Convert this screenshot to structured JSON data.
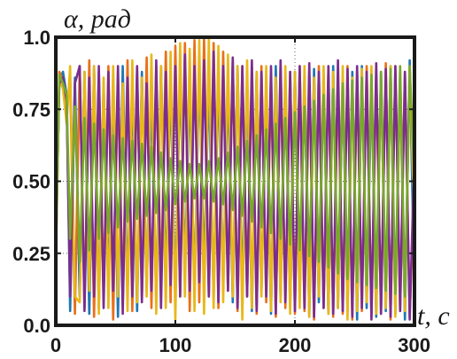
{
  "chart_data": {
    "type": "line",
    "title": "",
    "ylabel": "α, рад",
    "xlabel": "t, c",
    "xlim": [
      0,
      300
    ],
    "ylim": [
      0,
      1.0
    ],
    "xticks": [
      0,
      100,
      200,
      300
    ],
    "xtick_labels": [
      "0",
      "100",
      "200",
      "300"
    ],
    "yticks": [
      0.0,
      0.25,
      0.5,
      0.75,
      1.0
    ],
    "ytick_labels": [
      "0.0",
      "0.25",
      "0.50",
      "0.75",
      "1.0"
    ],
    "grid": "dotted",
    "legend": "none",
    "series": [
      {
        "color": "#1f77b4",
        "x": [
          0,
          3,
          6,
          9,
          12,
          16,
          20,
          24,
          28,
          32,
          36,
          40,
          44,
          48,
          52,
          56,
          60,
          64,
          68,
          72,
          76,
          80,
          84,
          88,
          92,
          96,
          100,
          104,
          108,
          112,
          116,
          120,
          124,
          128,
          132,
          136,
          140,
          144,
          148,
          152,
          156,
          160,
          164,
          168,
          172,
          176,
          180,
          184,
          188,
          192,
          196,
          200,
          204,
          208,
          212,
          216,
          220,
          224,
          228,
          232,
          236,
          240,
          244,
          248,
          252,
          256,
          260,
          264,
          268,
          272,
          276,
          280,
          284,
          288,
          292,
          296,
          300
        ],
        "y": [
          0.3,
          0.85,
          0.88,
          0.8,
          0.05,
          0.86,
          0.1,
          0.88,
          0.04,
          0.9,
          0.06,
          0.84,
          0.12,
          0.86,
          0.03,
          0.9,
          0.1,
          0.85,
          0.05,
          0.88,
          0.12,
          0.82,
          0.08,
          0.9,
          0.15,
          0.85,
          0.1,
          0.88,
          0.2,
          0.84,
          0.12,
          0.9,
          0.18,
          0.86,
          0.1,
          0.88,
          0.14,
          0.85,
          0.08,
          0.9,
          0.1,
          0.86,
          0.05,
          0.88,
          0.12,
          0.84,
          0.04,
          0.9,
          0.1,
          0.85,
          0.06,
          0.88,
          0.1,
          0.86,
          0.03,
          0.89,
          0.08,
          0.87,
          0.04,
          0.9,
          0.06,
          0.86,
          0.05,
          0.88,
          0.02,
          0.9,
          0.06,
          0.85,
          0.03,
          0.88,
          0.05,
          0.9,
          0.04,
          0.86,
          0.02,
          0.92,
          0.1
        ]
      },
      {
        "color": "#e8701a",
        "x": [
          0,
          3,
          6,
          9,
          12,
          16,
          20,
          24,
          28,
          32,
          36,
          40,
          44,
          48,
          52,
          56,
          60,
          64,
          68,
          72,
          76,
          80,
          84,
          88,
          92,
          96,
          100,
          104,
          108,
          112,
          116,
          120,
          124,
          128,
          132,
          136,
          140,
          144,
          148,
          152,
          156,
          160,
          164,
          168,
          172,
          176,
          180,
          184,
          188,
          192,
          196,
          200,
          204,
          208,
          212,
          216,
          220,
          224,
          228,
          232,
          236,
          240,
          244,
          248,
          252,
          256,
          260,
          264,
          268,
          272,
          276,
          280,
          284,
          288,
          292,
          296,
          300
        ],
        "y": [
          0.2,
          0.88,
          0.85,
          0.75,
          0.85,
          0.04,
          0.9,
          0.06,
          0.92,
          0.03,
          0.88,
          0.1,
          0.9,
          0.02,
          0.86,
          0.08,
          0.92,
          0.05,
          0.88,
          0.1,
          0.93,
          0.06,
          0.9,
          0.12,
          0.95,
          0.08,
          0.97,
          0.1,
          0.98,
          0.05,
          0.99,
          0.08,
          1.0,
          0.1,
          0.98,
          0.06,
          0.95,
          0.12,
          0.92,
          0.05,
          0.9,
          0.1,
          0.88,
          0.04,
          0.9,
          0.08,
          0.86,
          0.03,
          0.9,
          0.06,
          0.88,
          0.04,
          0.9,
          0.05,
          0.87,
          0.02,
          0.9,
          0.06,
          0.88,
          0.03,
          0.86,
          0.04,
          0.9,
          0.02,
          0.88,
          0.05,
          0.9,
          0.03,
          0.87,
          0.04,
          0.91,
          0.02,
          0.9,
          0.05,
          0.88,
          0.03,
          0.5
        ]
      },
      {
        "color": "#e8b81a",
        "x": [
          0,
          3,
          6,
          9,
          12,
          16,
          20,
          24,
          28,
          32,
          36,
          40,
          44,
          48,
          52,
          56,
          60,
          64,
          68,
          72,
          76,
          80,
          84,
          88,
          92,
          96,
          100,
          104,
          108,
          112,
          116,
          120,
          124,
          128,
          132,
          136,
          140,
          144,
          148,
          152,
          156,
          160,
          164,
          168,
          172,
          176,
          180,
          184,
          188,
          192,
          196,
          200,
          204,
          208,
          212,
          216,
          220,
          224,
          228,
          232,
          236,
          240,
          244,
          248,
          252,
          256,
          260,
          264,
          268,
          272,
          276,
          280,
          284,
          288,
          292,
          296,
          300
        ],
        "y": [
          0.25,
          0.86,
          0.82,
          0.7,
          0.9,
          0.1,
          0.08,
          0.88,
          0.12,
          0.9,
          0.04,
          0.86,
          0.06,
          0.9,
          0.1,
          0.84,
          0.05,
          0.92,
          0.08,
          0.86,
          0.1,
          0.94,
          0.04,
          0.9,
          0.06,
          0.95,
          0.02,
          0.98,
          0.1,
          0.96,
          0.05,
          0.99,
          0.04,
          1.0,
          0.06,
          0.97,
          0.08,
          0.94,
          0.1,
          0.9,
          0.02,
          0.92,
          0.06,
          0.88,
          0.1,
          0.9,
          0.05,
          0.86,
          0.08,
          0.9,
          0.04,
          0.88,
          0.06,
          0.9,
          0.03,
          0.86,
          0.1,
          0.9,
          0.04,
          0.88,
          0.06,
          0.9,
          0.02,
          0.86,
          0.05,
          0.89,
          0.08,
          0.9,
          0.04,
          0.87,
          0.06,
          0.9,
          0.03,
          0.88,
          0.05,
          0.9,
          0.35
        ]
      },
      {
        "color": "#7b2d8e",
        "x": [
          0,
          3,
          6,
          9,
          12,
          16,
          20,
          24,
          28,
          32,
          36,
          40,
          44,
          48,
          52,
          56,
          60,
          64,
          68,
          72,
          76,
          80,
          84,
          88,
          92,
          96,
          100,
          104,
          108,
          112,
          116,
          120,
          124,
          128,
          132,
          136,
          140,
          144,
          148,
          152,
          156,
          160,
          164,
          168,
          172,
          176,
          180,
          184,
          188,
          192,
          196,
          200,
          204,
          208,
          212,
          216,
          220,
          224,
          228,
          232,
          236,
          240,
          244,
          248,
          252,
          256,
          260,
          264,
          268,
          272,
          276,
          280,
          284,
          288,
          292,
          296,
          300
        ],
        "y": [
          0.28,
          0.84,
          0.86,
          0.78,
          0.1,
          0.84,
          0.9,
          0.05,
          0.86,
          0.1,
          0.9,
          0.06,
          0.88,
          0.12,
          0.9,
          0.04,
          0.86,
          0.1,
          0.9,
          0.08,
          0.84,
          0.12,
          0.92,
          0.06,
          0.88,
          0.14,
          0.9,
          0.1,
          0.94,
          0.12,
          0.9,
          0.15,
          0.92,
          0.1,
          0.95,
          0.08,
          0.9,
          0.12,
          0.93,
          0.06,
          0.9,
          0.1,
          0.92,
          0.05,
          0.88,
          0.1,
          0.9,
          0.04,
          0.92,
          0.08,
          0.88,
          0.05,
          0.9,
          0.06,
          0.91,
          0.03,
          0.88,
          0.06,
          0.9,
          0.04,
          0.92,
          0.05,
          0.89,
          0.03,
          0.9,
          0.06,
          0.88,
          0.02,
          0.91,
          0.04,
          0.89,
          0.03,
          0.9,
          0.05,
          0.88,
          0.02,
          0.6
        ]
      },
      {
        "color": "#79a82e",
        "x": [
          0,
          3,
          6,
          9,
          12,
          16,
          20,
          24,
          28,
          32,
          36,
          40,
          44,
          48,
          52,
          56,
          60,
          64,
          68,
          72,
          76,
          80,
          84,
          88,
          92,
          96,
          100,
          104,
          108,
          112,
          116,
          120,
          124,
          128,
          132,
          136,
          140,
          144,
          148,
          152,
          156,
          160,
          164,
          168,
          172,
          176,
          180,
          184,
          188,
          192,
          196,
          200,
          204,
          208,
          212,
          216,
          220,
          224,
          228,
          232,
          236,
          240,
          244,
          248,
          252,
          256,
          260,
          264,
          268,
          272,
          276,
          280,
          284,
          288,
          292,
          296,
          300
        ],
        "y": [
          0.22,
          0.87,
          0.84,
          0.8,
          0.3,
          0.76,
          0.22,
          0.72,
          0.26,
          0.7,
          0.3,
          0.68,
          0.32,
          0.66,
          0.34,
          0.65,
          0.36,
          0.64,
          0.37,
          0.63,
          0.38,
          0.62,
          0.39,
          0.6,
          0.4,
          0.58,
          0.42,
          0.57,
          0.43,
          0.56,
          0.44,
          0.56,
          0.44,
          0.57,
          0.43,
          0.58,
          0.42,
          0.6,
          0.4,
          0.62,
          0.38,
          0.64,
          0.36,
          0.66,
          0.34,
          0.68,
          0.32,
          0.7,
          0.3,
          0.72,
          0.28,
          0.74,
          0.26,
          0.76,
          0.24,
          0.78,
          0.22,
          0.8,
          0.2,
          0.82,
          0.18,
          0.84,
          0.16,
          0.85,
          0.15,
          0.86,
          0.14,
          0.87,
          0.13,
          0.88,
          0.12,
          0.89,
          0.11,
          0.9,
          0.1,
          0.9,
          0.5
        ]
      }
    ]
  }
}
